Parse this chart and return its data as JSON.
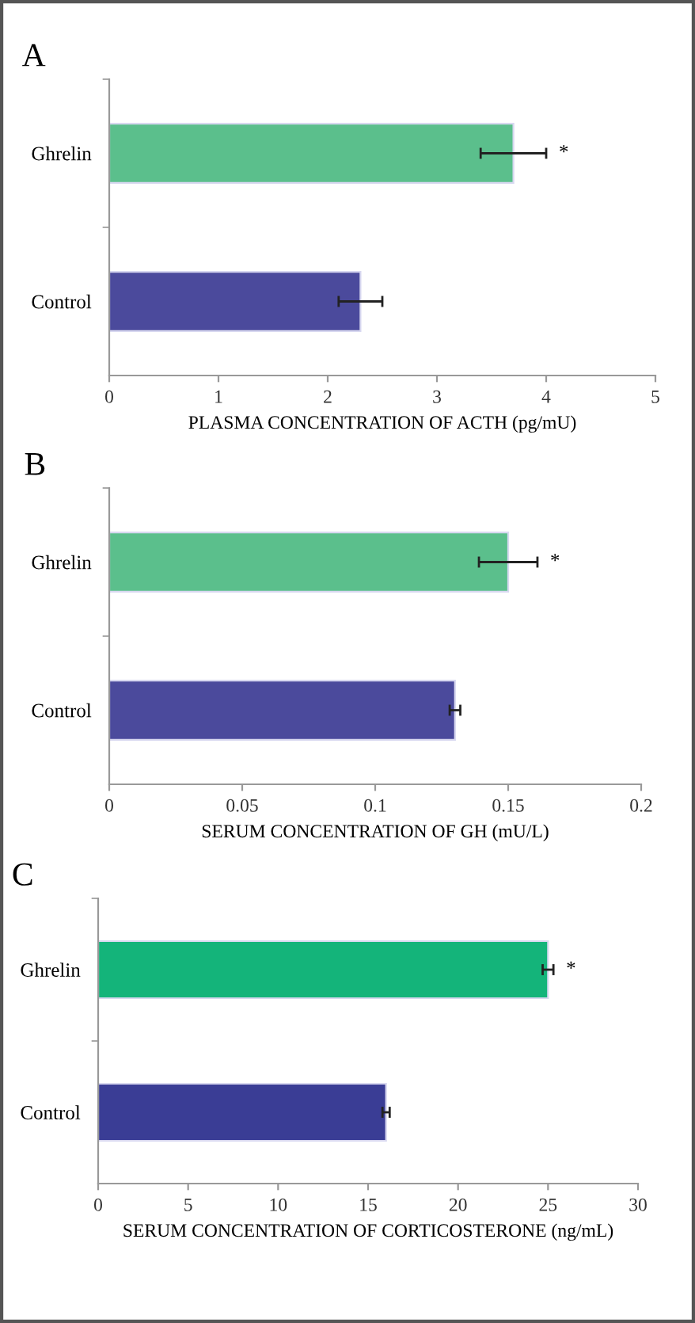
{
  "chart_data": [
    {
      "type": "bar",
      "orientation": "horizontal",
      "title": "A",
      "xlabel": "PLASMA CONCENTRATION OF ACTH (pg/mU)",
      "categories": [
        "Ghrelin",
        "Control"
      ],
      "values": [
        3.7,
        2.3
      ],
      "colors": [
        "#5bbf8c",
        "#4b4a9c"
      ],
      "errors": [
        [
          3.4,
          4.0
        ],
        [
          2.1,
          2.5
        ]
      ],
      "xlim": [
        0,
        5
      ],
      "xticks": [
        0,
        1,
        2,
        3,
        4,
        5
      ],
      "grid": false,
      "legend": false,
      "annotations": [
        "*"
      ]
    },
    {
      "type": "bar",
      "orientation": "horizontal",
      "title": "B",
      "xlabel": "SERUM CONCENTRATION OF GH (mU/L)",
      "categories": [
        "Ghrelin",
        "Control"
      ],
      "values": [
        0.15,
        0.13
      ],
      "colors": [
        "#5bbf8c",
        "#4b4a9c"
      ],
      "errors": [
        [
          0.139,
          0.161
        ],
        [
          0.128,
          0.132
        ]
      ],
      "xlim": [
        0,
        0.2
      ],
      "xticks": [
        0,
        0.05,
        0.1,
        0.15,
        0.2
      ],
      "grid": false,
      "legend": false,
      "annotations": [
        "*"
      ]
    },
    {
      "type": "bar",
      "orientation": "horizontal",
      "title": "C",
      "xlabel": "SERUM CONCENTRATION OF CORTICOSTERONE (ng/mL)",
      "categories": [
        "Ghrelin",
        "Control"
      ],
      "values": [
        25,
        16
      ],
      "colors": [
        "#14b47a",
        "#3a3d95"
      ],
      "errors": [
        [
          24.7,
          25.3
        ],
        [
          15.8,
          16.2
        ]
      ],
      "xlim": [
        0,
        30
      ],
      "xticks": [
        0,
        5,
        10,
        15,
        20,
        25,
        30
      ],
      "grid": false,
      "legend": false,
      "annotations": [
        "*"
      ]
    }
  ]
}
